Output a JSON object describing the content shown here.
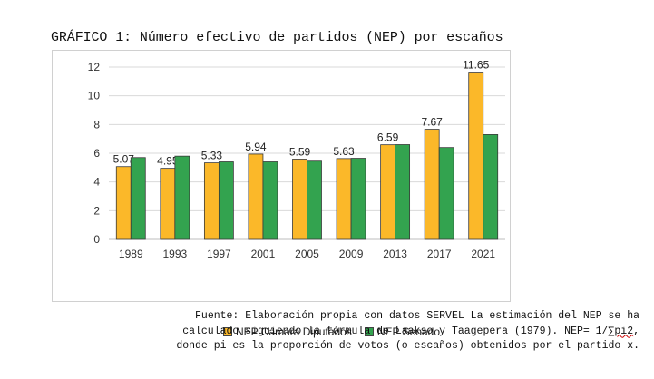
{
  "figure": {
    "title": "GRÁFICO 1: Número efectivo de partidos (NEP) por escaños"
  },
  "chart_data": {
    "type": "bar",
    "categories": [
      "1989",
      "1993",
      "1997",
      "2001",
      "2005",
      "2009",
      "2013",
      "2017",
      "2021"
    ],
    "series": [
      {
        "name": "NEP Cámara Diputados",
        "color": "#FBB829",
        "values": [
          5.07,
          4.95,
          5.33,
          5.94,
          5.59,
          5.63,
          6.59,
          7.67,
          11.65
        ],
        "labels": [
          "5.07",
          "4.95",
          "5.33",
          "5.94",
          "5.59",
          "5.63",
          "6.59",
          "7.67",
          "11.65"
        ]
      },
      {
        "name": "NEP Senado",
        "color": "#33A34F",
        "values": [
          5.7,
          5.8,
          5.4,
          5.4,
          5.45,
          5.65,
          6.6,
          6.4,
          7.3
        ]
      }
    ],
    "title": "",
    "xlabel": "",
    "ylabel": "",
    "ylim": [
      0,
      12
    ],
    "yticks": [
      "0",
      "2",
      "4",
      "6",
      "8",
      "10",
      "12"
    ],
    "grid": true,
    "legend_position": "bottom"
  },
  "source": {
    "line1": "Fuente: Elaboración propia con datos SERVEL La estimación del NEP se ha",
    "line2": "calculado siguiendo la fórmula de Laakso y Taagepera (1979). NEP= 1/",
    "line2_squiggle": "∑pi2",
    "line2_end": ",",
    "line3": "donde pi es la proporción de votos (o escaños) obtenidos por el partido x."
  }
}
